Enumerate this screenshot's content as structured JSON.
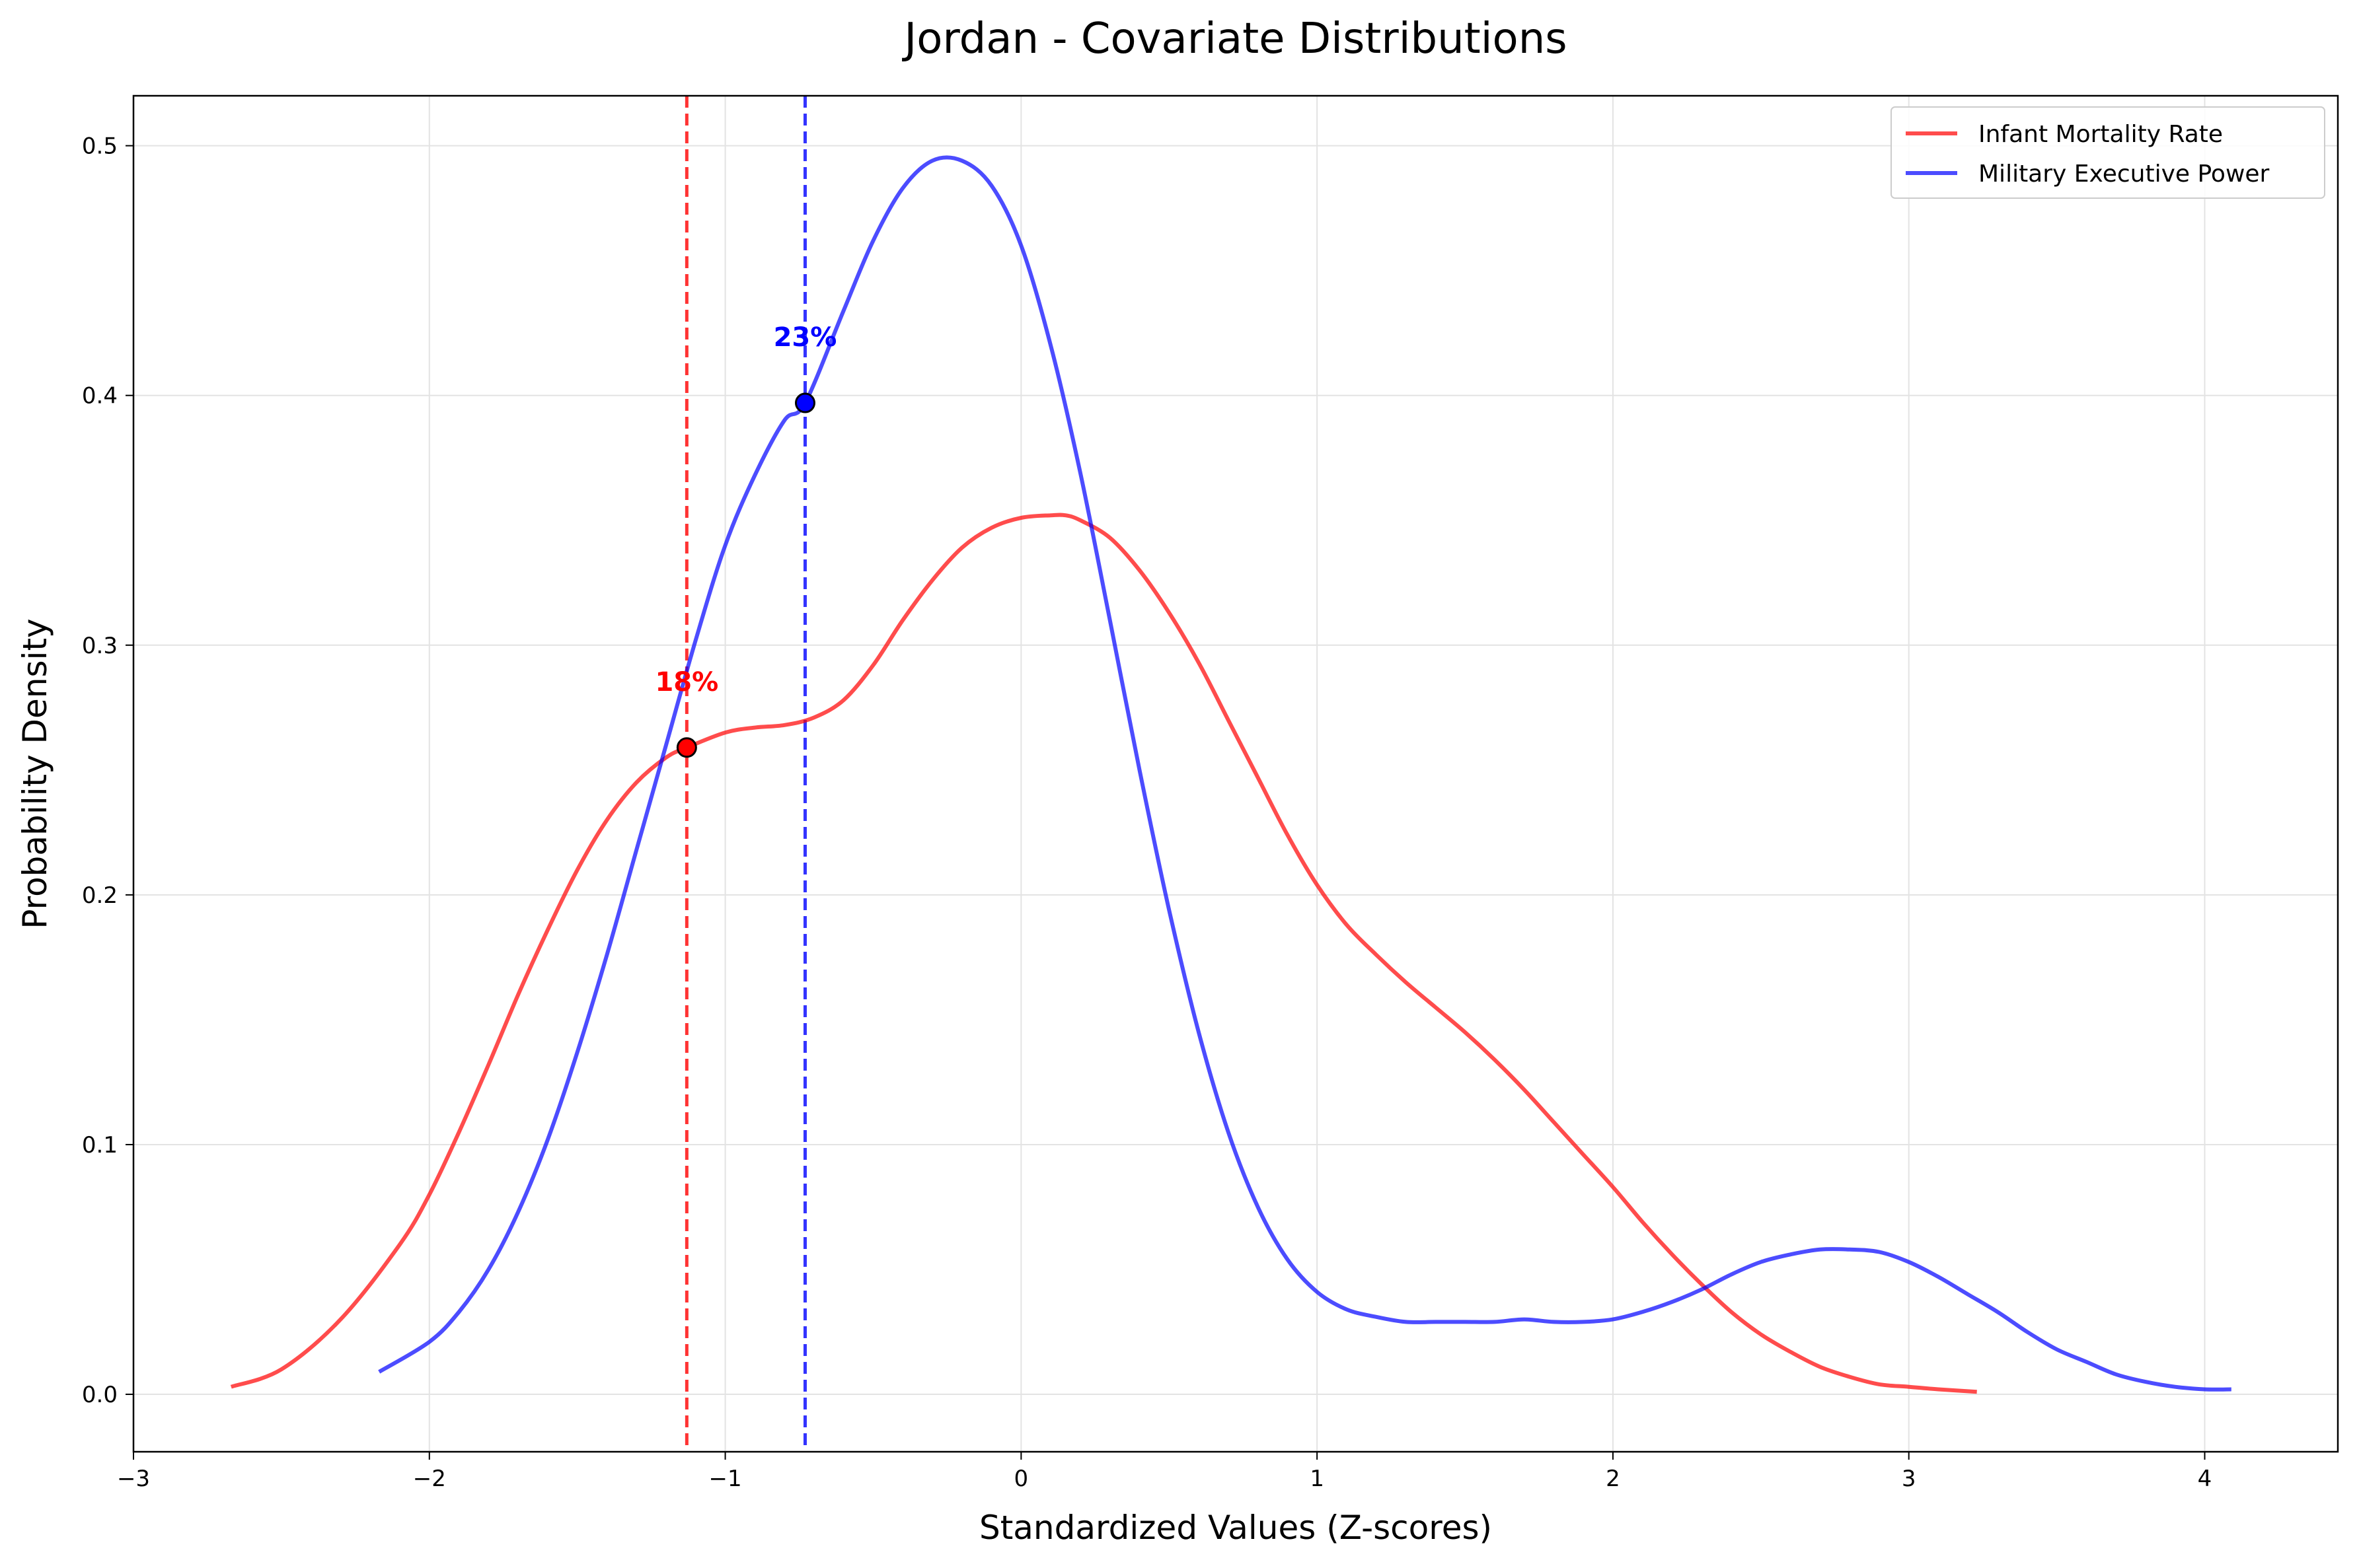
{
  "chart_data": {
    "type": "line",
    "title": "Jordan - Covariate Distributions",
    "xlabel": "Standardized Values (Z-scores)",
    "ylabel": "Probability Density",
    "xlim": [
      -3,
      4.45
    ],
    "ylim": [
      -0.023,
      0.52
    ],
    "xticks": [
      -3,
      -2,
      -1,
      0,
      1,
      2,
      3,
      4
    ],
    "xtick_labels": [
      "−3",
      "−2",
      "−1",
      "0",
      "1",
      "2",
      "3",
      "4"
    ],
    "yticks": [
      0.0,
      0.1,
      0.2,
      0.3,
      0.4,
      0.5
    ],
    "ytick_labels": [
      "0.0",
      "0.1",
      "0.2",
      "0.3",
      "0.4",
      "0.5"
    ],
    "grid": true,
    "legend_position": "top-right",
    "series": [
      {
        "name": "Infant Mortality Rate",
        "color": "#ff0000",
        "x": [
          -2.67,
          -2.5,
          -2.3,
          -2.1,
          -2.0,
          -1.9,
          -1.8,
          -1.7,
          -1.6,
          -1.5,
          -1.4,
          -1.3,
          -1.2,
          -1.13,
          -1.0,
          -0.9,
          -0.8,
          -0.7,
          -0.6,
          -0.5,
          -0.4,
          -0.3,
          -0.2,
          -0.1,
          0.0,
          0.1,
          0.15,
          0.2,
          0.3,
          0.4,
          0.5,
          0.6,
          0.7,
          0.8,
          0.9,
          1.0,
          1.1,
          1.2,
          1.3,
          1.4,
          1.5,
          1.6,
          1.7,
          1.8,
          1.9,
          2.0,
          2.1,
          2.2,
          2.3,
          2.4,
          2.5,
          2.6,
          2.7,
          2.8,
          2.9,
          3.0,
          3.1,
          3.23
        ],
        "y": [
          0.003,
          0.01,
          0.03,
          0.06,
          0.08,
          0.105,
          0.132,
          0.16,
          0.186,
          0.21,
          0.23,
          0.245,
          0.255,
          0.259,
          0.265,
          0.267,
          0.268,
          0.271,
          0.278,
          0.292,
          0.31,
          0.326,
          0.339,
          0.347,
          0.351,
          0.352,
          0.352,
          0.35,
          0.343,
          0.33,
          0.313,
          0.293,
          0.27,
          0.247,
          0.224,
          0.204,
          0.188,
          0.176,
          0.165,
          0.155,
          0.145,
          0.134,
          0.122,
          0.109,
          0.096,
          0.083,
          0.069,
          0.056,
          0.044,
          0.033,
          0.024,
          0.017,
          0.011,
          0.007,
          0.004,
          0.003,
          0.002,
          0.001
        ]
      },
      {
        "name": "Military Executive Power",
        "color": "#0000ff",
        "x": [
          -2.17,
          -2.0,
          -1.9,
          -1.8,
          -1.7,
          -1.6,
          -1.5,
          -1.4,
          -1.3,
          -1.2,
          -1.1,
          -1.0,
          -0.9,
          -0.8,
          -0.73,
          -0.6,
          -0.5,
          -0.4,
          -0.3,
          -0.2,
          -0.1,
          0.0,
          0.1,
          0.2,
          0.3,
          0.4,
          0.5,
          0.6,
          0.7,
          0.8,
          0.9,
          1.0,
          1.1,
          1.2,
          1.3,
          1.4,
          1.5,
          1.6,
          1.7,
          1.8,
          1.9,
          2.0,
          2.1,
          2.2,
          2.3,
          2.4,
          2.5,
          2.6,
          2.7,
          2.8,
          2.9,
          3.0,
          3.1,
          3.2,
          3.3,
          3.4,
          3.5,
          3.6,
          3.7,
          3.8,
          3.9,
          4.0,
          4.09
        ],
        "y": [
          0.009,
          0.021,
          0.033,
          0.05,
          0.073,
          0.102,
          0.137,
          0.176,
          0.218,
          0.26,
          0.302,
          0.34,
          0.368,
          0.39,
          0.397,
          0.434,
          0.462,
          0.483,
          0.494,
          0.494,
          0.484,
          0.46,
          0.42,
          0.369,
          0.31,
          0.25,
          0.194,
          0.145,
          0.105,
          0.075,
          0.054,
          0.041,
          0.034,
          0.031,
          0.029,
          0.029,
          0.029,
          0.029,
          0.03,
          0.029,
          0.029,
          0.03,
          0.033,
          0.037,
          0.042,
          0.048,
          0.053,
          0.056,
          0.058,
          0.058,
          0.057,
          0.053,
          0.047,
          0.04,
          0.033,
          0.025,
          0.018,
          0.013,
          0.008,
          0.005,
          0.003,
          0.002,
          0.002
        ]
      }
    ],
    "markers": [
      {
        "series": "Infant Mortality Rate",
        "x": -1.13,
        "y": 0.259,
        "label": "18%",
        "color": "#ff0000"
      },
      {
        "series": "Military Executive Power",
        "x": -0.73,
        "y": 0.397,
        "label": "23%",
        "color": "#0000ff"
      }
    ]
  }
}
